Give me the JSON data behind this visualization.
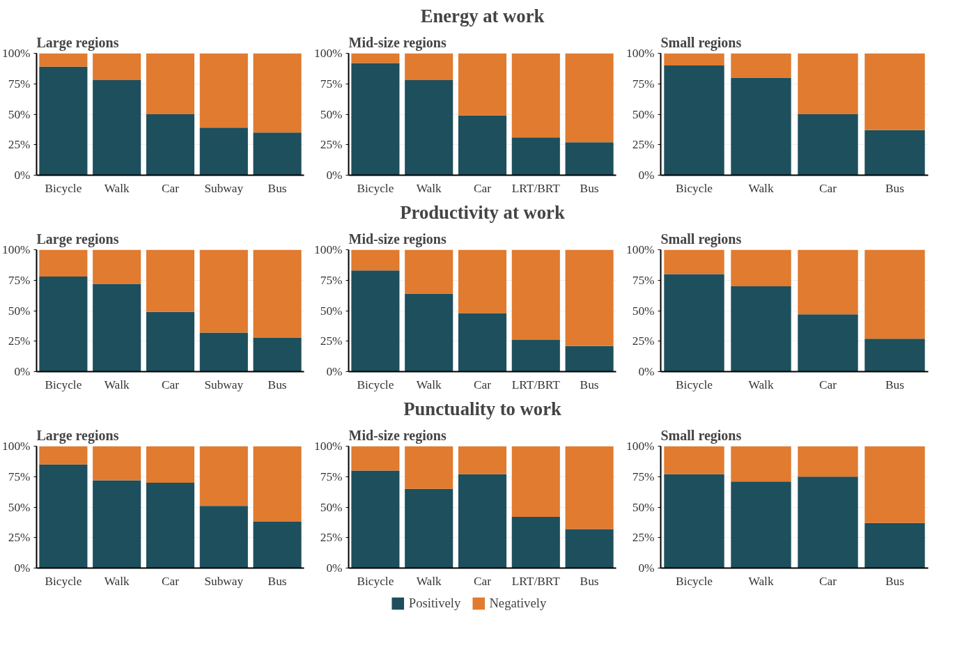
{
  "chart_data": [
    {
      "type": "bar",
      "subtitle": "Large regions",
      "categories": [
        "Bicycle",
        "Walk",
        "Car",
        "Subway",
        "Bus"
      ],
      "stacked": true,
      "ylim": [
        0,
        100
      ],
      "yticks": [
        {
          "value": 0,
          "label": "0%"
        },
        {
          "value": 25,
          "label": "25%"
        },
        {
          "value": 50,
          "label": "50%"
        },
        {
          "value": 75,
          "label": "75%"
        },
        {
          "value": 100,
          "label": "100%"
        }
      ],
      "grid": "y",
      "series": [
        {
          "color": "#1d4f5c",
          "values": [
            89,
            78,
            50,
            39,
            35
          ]
        },
        {
          "color": "#e07b30",
          "values": [
            11,
            22,
            50,
            61,
            65
          ]
        }
      ]
    },
    {
      "type": "bar",
      "title": "Energy at work",
      "subtitle": "Mid-size regions",
      "categories": [
        "Bicycle",
        "Walk",
        "Car",
        "LRT/BRT",
        "Bus"
      ],
      "stacked": true,
      "ylim": [
        0,
        100
      ],
      "yticks": [
        {
          "value": 0,
          "label": "0%"
        },
        {
          "value": 25,
          "label": "25%"
        },
        {
          "value": 50,
          "label": "50%"
        },
        {
          "value": 75,
          "label": "75%"
        },
        {
          "value": 100,
          "label": "100%"
        }
      ],
      "grid": "y",
      "series": [
        {
          "color": "#1d4f5c",
          "values": [
            92,
            78,
            49,
            31,
            27
          ]
        },
        {
          "color": "#e07b30",
          "values": [
            8,
            22,
            51,
            69,
            73
          ]
        }
      ]
    },
    {
      "type": "bar",
      "subtitle": "Small regions",
      "categories": [
        "Bicycle",
        "Walk",
        "Car",
        "Bus"
      ],
      "stacked": true,
      "ylim": [
        0,
        100
      ],
      "yticks": [
        {
          "value": 0,
          "label": "0%"
        },
        {
          "value": 25,
          "label": "25%"
        },
        {
          "value": 50,
          "label": "50%"
        },
        {
          "value": 75,
          "label": "75%"
        },
        {
          "value": 100,
          "label": "100%"
        }
      ],
      "grid": "y",
      "series": [
        {
          "color": "#1d4f5c",
          "values": [
            90,
            80,
            50,
            37
          ]
        },
        {
          "color": "#e07b30",
          "values": [
            10,
            20,
            50,
            63
          ]
        }
      ]
    },
    {
      "type": "bar",
      "subtitle": "Large regions",
      "categories": [
        "Bicycle",
        "Walk",
        "Car",
        "Subway",
        "Bus"
      ],
      "stacked": true,
      "ylim": [
        0,
        100
      ],
      "yticks": [
        {
          "value": 0,
          "label": "0%"
        },
        {
          "value": 25,
          "label": "25%"
        },
        {
          "value": 50,
          "label": "50%"
        },
        {
          "value": 75,
          "label": "75%"
        },
        {
          "value": 100,
          "label": "100%"
        }
      ],
      "grid": "y",
      "series": [
        {
          "color": "#1d4f5c",
          "values": [
            78,
            72,
            49,
            32,
            28
          ]
        },
        {
          "color": "#e07b30",
          "values": [
            22,
            28,
            51,
            68,
            72
          ]
        }
      ]
    },
    {
      "type": "bar",
      "title": "Productivity at work",
      "subtitle": "Mid-size regions",
      "categories": [
        "Bicycle",
        "Walk",
        "Car",
        "LRT/BRT",
        "Bus"
      ],
      "stacked": true,
      "ylim": [
        0,
        100
      ],
      "yticks": [
        {
          "value": 0,
          "label": "0%"
        },
        {
          "value": 25,
          "label": "25%"
        },
        {
          "value": 50,
          "label": "50%"
        },
        {
          "value": 75,
          "label": "75%"
        },
        {
          "value": 100,
          "label": "100%"
        }
      ],
      "grid": "y",
      "series": [
        {
          "color": "#1d4f5c",
          "values": [
            83,
            64,
            48,
            26,
            21
          ]
        },
        {
          "color": "#e07b30",
          "values": [
            17,
            36,
            52,
            74,
            79
          ]
        }
      ]
    },
    {
      "type": "bar",
      "subtitle": "Small regions",
      "categories": [
        "Bicycle",
        "Walk",
        "Car",
        "Bus"
      ],
      "stacked": true,
      "ylim": [
        0,
        100
      ],
      "yticks": [
        {
          "value": 0,
          "label": "0%"
        },
        {
          "value": 25,
          "label": "25%"
        },
        {
          "value": 50,
          "label": "50%"
        },
        {
          "value": 75,
          "label": "75%"
        },
        {
          "value": 100,
          "label": "100%"
        }
      ],
      "grid": "y",
      "series": [
        {
          "color": "#1d4f5c",
          "values": [
            80,
            70,
            47,
            27
          ]
        },
        {
          "color": "#e07b30",
          "values": [
            20,
            30,
            53,
            73
          ]
        }
      ]
    },
    {
      "type": "bar",
      "subtitle": "Large regions",
      "categories": [
        "Bicycle",
        "Walk",
        "Car",
        "Subway",
        "Bus"
      ],
      "stacked": true,
      "ylim": [
        0,
        100
      ],
      "yticks": [
        {
          "value": 0,
          "label": "0%"
        },
        {
          "value": 25,
          "label": "25%"
        },
        {
          "value": 50,
          "label": "50%"
        },
        {
          "value": 75,
          "label": "75%"
        },
        {
          "value": 100,
          "label": "100%"
        }
      ],
      "grid": "y",
      "series": [
        {
          "color": "#1d4f5c",
          "values": [
            85,
            72,
            70,
            51,
            38
          ]
        },
        {
          "color": "#e07b30",
          "values": [
            15,
            28,
            30,
            49,
            62
          ]
        }
      ]
    },
    {
      "type": "bar",
      "title": "Punctuality to work",
      "subtitle": "Mid-size regions",
      "categories": [
        "Bicycle",
        "Walk",
        "Car",
        "LRT/BRT",
        "Bus"
      ],
      "stacked": true,
      "ylim": [
        0,
        100
      ],
      "yticks": [
        {
          "value": 0,
          "label": "0%"
        },
        {
          "value": 25,
          "label": "25%"
        },
        {
          "value": 50,
          "label": "50%"
        },
        {
          "value": 75,
          "label": "75%"
        },
        {
          "value": 100,
          "label": "100%"
        }
      ],
      "grid": "y",
      "legend": "bottom",
      "series": [
        {
          "name": "Positively",
          "color": "#1d4f5c",
          "values": [
            80,
            65,
            77,
            42,
            32
          ]
        },
        {
          "name": "Negatively",
          "color": "#e07b30",
          "values": [
            20,
            35,
            23,
            58,
            68
          ]
        }
      ]
    },
    {
      "type": "bar",
      "subtitle": "Small regions",
      "categories": [
        "Bicycle",
        "Walk",
        "Car",
        "Bus"
      ],
      "stacked": true,
      "ylim": [
        0,
        100
      ],
      "yticks": [
        {
          "value": 0,
          "label": "0%"
        },
        {
          "value": 25,
          "label": "25%"
        },
        {
          "value": 50,
          "label": "50%"
        },
        {
          "value": 75,
          "label": "75%"
        },
        {
          "value": 100,
          "label": "100%"
        }
      ],
      "grid": "y",
      "series": [
        {
          "color": "#1d4f5c",
          "values": [
            77,
            71,
            75,
            37
          ]
        },
        {
          "color": "#e07b30",
          "values": [
            23,
            29,
            25,
            63
          ]
        }
      ]
    }
  ]
}
